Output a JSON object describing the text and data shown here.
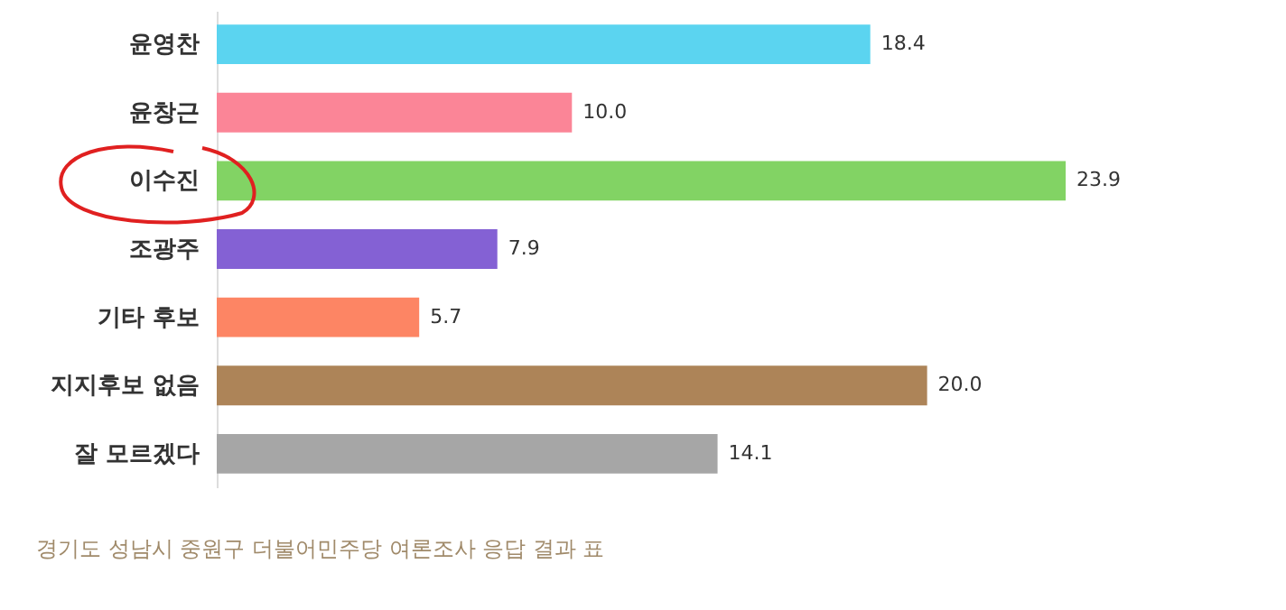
{
  "chart_data": {
    "type": "bar",
    "orientation": "horizontal",
    "categories": [
      "윤영찬",
      "윤창근",
      "이수진",
      "조광주",
      "기타 후보",
      "지지후보 없음",
      "잘 모르겠다"
    ],
    "values": [
      18.4,
      10.0,
      23.9,
      7.9,
      5.7,
      20.0,
      14.1
    ],
    "colors": [
      "#5bd4f0",
      "#fb8597",
      "#82d364",
      "#8461d4",
      "#fd8564",
      "#ad8458",
      "#a6a6a6"
    ],
    "value_labels": [
      "18.4",
      "10.0",
      "23.9",
      "7.9",
      "5.7",
      "20.0",
      "14.1"
    ],
    "annotations": [
      "경기도 성남시 중원구 더불어민주당 여론조사 응답 결과 표"
    ]
  }
}
